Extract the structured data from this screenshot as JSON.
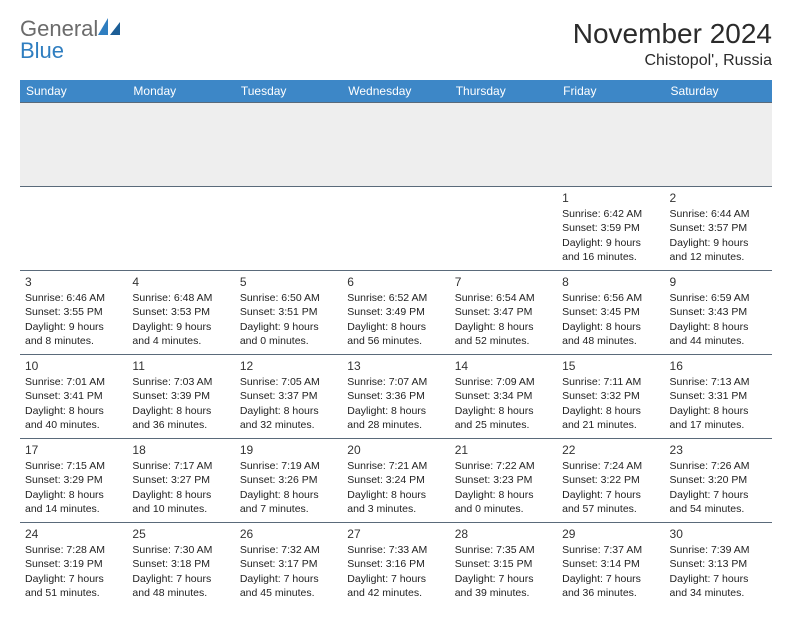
{
  "brand": {
    "text_a": "General",
    "text_b": "Blue"
  },
  "title": "November 2024",
  "location": "Chistopol', Russia",
  "colors": {
    "header_bg": "#3d87c7",
    "header_fg": "#ffffff",
    "row_border": "#5a6a7a",
    "blank_bg": "#eeeeee",
    "brand_gray": "#6b6b6b",
    "brand_blue": "#2f7ec0"
  },
  "weekdays": [
    "Sunday",
    "Monday",
    "Tuesday",
    "Wednesday",
    "Thursday",
    "Friday",
    "Saturday"
  ],
  "weeks": [
    [
      null,
      null,
      null,
      null,
      null,
      {
        "n": "1",
        "sr": "Sunrise: 6:42 AM",
        "ss": "Sunset: 3:59 PM",
        "dl": "Daylight: 9 hours and 16 minutes."
      },
      {
        "n": "2",
        "sr": "Sunrise: 6:44 AM",
        "ss": "Sunset: 3:57 PM",
        "dl": "Daylight: 9 hours and 12 minutes."
      }
    ],
    [
      {
        "n": "3",
        "sr": "Sunrise: 6:46 AM",
        "ss": "Sunset: 3:55 PM",
        "dl": "Daylight: 9 hours and 8 minutes."
      },
      {
        "n": "4",
        "sr": "Sunrise: 6:48 AM",
        "ss": "Sunset: 3:53 PM",
        "dl": "Daylight: 9 hours and 4 minutes."
      },
      {
        "n": "5",
        "sr": "Sunrise: 6:50 AM",
        "ss": "Sunset: 3:51 PM",
        "dl": "Daylight: 9 hours and 0 minutes."
      },
      {
        "n": "6",
        "sr": "Sunrise: 6:52 AM",
        "ss": "Sunset: 3:49 PM",
        "dl": "Daylight: 8 hours and 56 minutes."
      },
      {
        "n": "7",
        "sr": "Sunrise: 6:54 AM",
        "ss": "Sunset: 3:47 PM",
        "dl": "Daylight: 8 hours and 52 minutes."
      },
      {
        "n": "8",
        "sr": "Sunrise: 6:56 AM",
        "ss": "Sunset: 3:45 PM",
        "dl": "Daylight: 8 hours and 48 minutes."
      },
      {
        "n": "9",
        "sr": "Sunrise: 6:59 AM",
        "ss": "Sunset: 3:43 PM",
        "dl": "Daylight: 8 hours and 44 minutes."
      }
    ],
    [
      {
        "n": "10",
        "sr": "Sunrise: 7:01 AM",
        "ss": "Sunset: 3:41 PM",
        "dl": "Daylight: 8 hours and 40 minutes."
      },
      {
        "n": "11",
        "sr": "Sunrise: 7:03 AM",
        "ss": "Sunset: 3:39 PM",
        "dl": "Daylight: 8 hours and 36 minutes."
      },
      {
        "n": "12",
        "sr": "Sunrise: 7:05 AM",
        "ss": "Sunset: 3:37 PM",
        "dl": "Daylight: 8 hours and 32 minutes."
      },
      {
        "n": "13",
        "sr": "Sunrise: 7:07 AM",
        "ss": "Sunset: 3:36 PM",
        "dl": "Daylight: 8 hours and 28 minutes."
      },
      {
        "n": "14",
        "sr": "Sunrise: 7:09 AM",
        "ss": "Sunset: 3:34 PM",
        "dl": "Daylight: 8 hours and 25 minutes."
      },
      {
        "n": "15",
        "sr": "Sunrise: 7:11 AM",
        "ss": "Sunset: 3:32 PM",
        "dl": "Daylight: 8 hours and 21 minutes."
      },
      {
        "n": "16",
        "sr": "Sunrise: 7:13 AM",
        "ss": "Sunset: 3:31 PM",
        "dl": "Daylight: 8 hours and 17 minutes."
      }
    ],
    [
      {
        "n": "17",
        "sr": "Sunrise: 7:15 AM",
        "ss": "Sunset: 3:29 PM",
        "dl": "Daylight: 8 hours and 14 minutes."
      },
      {
        "n": "18",
        "sr": "Sunrise: 7:17 AM",
        "ss": "Sunset: 3:27 PM",
        "dl": "Daylight: 8 hours and 10 minutes."
      },
      {
        "n": "19",
        "sr": "Sunrise: 7:19 AM",
        "ss": "Sunset: 3:26 PM",
        "dl": "Daylight: 8 hours and 7 minutes."
      },
      {
        "n": "20",
        "sr": "Sunrise: 7:21 AM",
        "ss": "Sunset: 3:24 PM",
        "dl": "Daylight: 8 hours and 3 minutes."
      },
      {
        "n": "21",
        "sr": "Sunrise: 7:22 AM",
        "ss": "Sunset: 3:23 PM",
        "dl": "Daylight: 8 hours and 0 minutes."
      },
      {
        "n": "22",
        "sr": "Sunrise: 7:24 AM",
        "ss": "Sunset: 3:22 PM",
        "dl": "Daylight: 7 hours and 57 minutes."
      },
      {
        "n": "23",
        "sr": "Sunrise: 7:26 AM",
        "ss": "Sunset: 3:20 PM",
        "dl": "Daylight: 7 hours and 54 minutes."
      }
    ],
    [
      {
        "n": "24",
        "sr": "Sunrise: 7:28 AM",
        "ss": "Sunset: 3:19 PM",
        "dl": "Daylight: 7 hours and 51 minutes."
      },
      {
        "n": "25",
        "sr": "Sunrise: 7:30 AM",
        "ss": "Sunset: 3:18 PM",
        "dl": "Daylight: 7 hours and 48 minutes."
      },
      {
        "n": "26",
        "sr": "Sunrise: 7:32 AM",
        "ss": "Sunset: 3:17 PM",
        "dl": "Daylight: 7 hours and 45 minutes."
      },
      {
        "n": "27",
        "sr": "Sunrise: 7:33 AM",
        "ss": "Sunset: 3:16 PM",
        "dl": "Daylight: 7 hours and 42 minutes."
      },
      {
        "n": "28",
        "sr": "Sunrise: 7:35 AM",
        "ss": "Sunset: 3:15 PM",
        "dl": "Daylight: 7 hours and 39 minutes."
      },
      {
        "n": "29",
        "sr": "Sunrise: 7:37 AM",
        "ss": "Sunset: 3:14 PM",
        "dl": "Daylight: 7 hours and 36 minutes."
      },
      {
        "n": "30",
        "sr": "Sunrise: 7:39 AM",
        "ss": "Sunset: 3:13 PM",
        "dl": "Daylight: 7 hours and 34 minutes."
      }
    ]
  ]
}
